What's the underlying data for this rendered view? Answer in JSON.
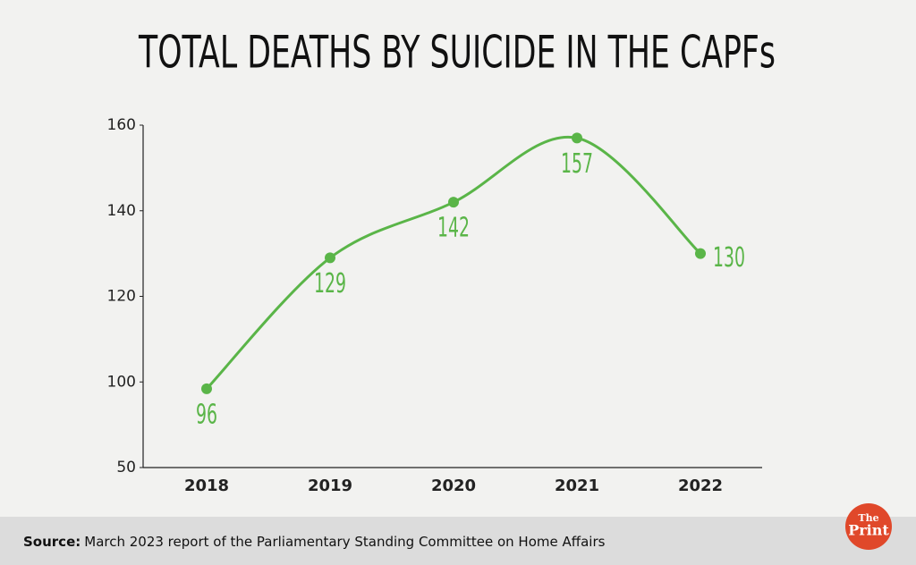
{
  "chart_data": {
    "type": "line",
    "title": "TOTAL DEATHS BY SUICIDE IN THE CAPFs",
    "categories": [
      "2018",
      "2019",
      "2020",
      "2021",
      "2022"
    ],
    "values": [
      96,
      129,
      142,
      157,
      130
    ],
    "color": "#5ab548",
    "ylim": [
      50,
      160
    ],
    "yticks": [
      50,
      100,
      120,
      140,
      160
    ],
    "smooth": true
  },
  "footer": {
    "source_label": "Source:",
    "source": "March 2023 report of the Parliamentary Standing Committee on Home Affairs"
  },
  "logo": {
    "line1": "The",
    "line2": "Print"
  }
}
